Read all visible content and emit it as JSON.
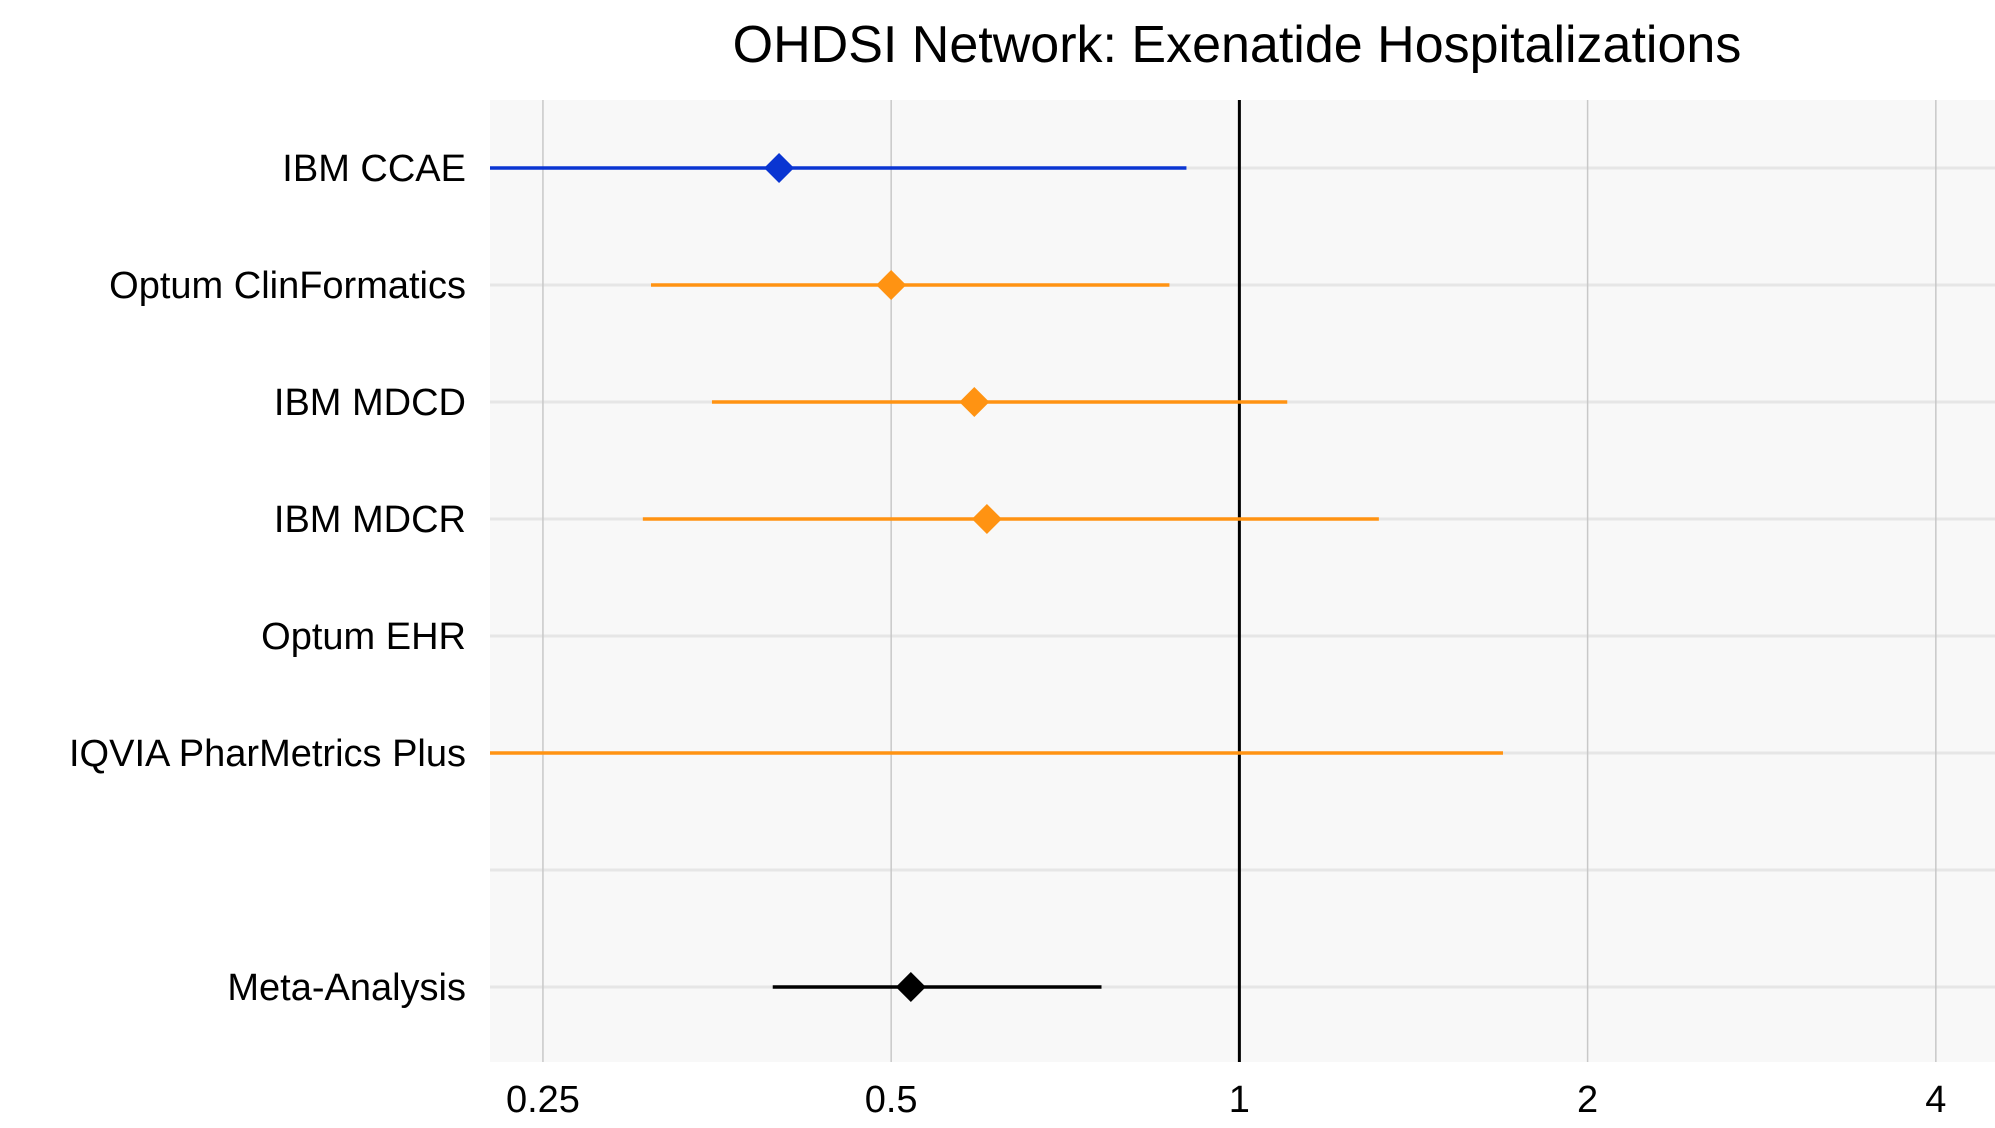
{
  "chart_data": {
    "type": "scatter",
    "title": "OHDSI Network: Exenatide Hospitalizations",
    "xlabel": "",
    "ylabel": "",
    "x_scale": "log2",
    "xlim": [
      0.225,
      4.5
    ],
    "x_ticks": [
      {
        "value": 0.25,
        "label": "0.25"
      },
      {
        "value": 0.5,
        "label": "0.5"
      },
      {
        "value": 1,
        "label": "1"
      },
      {
        "value": 2,
        "label": "2"
      },
      {
        "value": 4,
        "label": "4"
      }
    ],
    "reference_line": 1,
    "grid": true,
    "colors": {
      "highlight": "#0a35d2",
      "default": "#ff9312",
      "meta": "#000000",
      "panel": "#f8f8f8",
      "grid": "#e6e6e6",
      "vgrid": "#c8c8c8"
    },
    "rows": [
      {
        "label": "IBM CCAE",
        "estimate": 0.4,
        "lower": 0.225,
        "upper": 0.9,
        "group": "highlight"
      },
      {
        "label": "Optum ClinFormatics",
        "estimate": 0.5,
        "lower": 0.31,
        "upper": 0.87,
        "group": "default"
      },
      {
        "label": "IBM MDCD",
        "estimate": 0.59,
        "lower": 0.35,
        "upper": 1.1,
        "group": "default"
      },
      {
        "label": "IBM MDCR",
        "estimate": 0.605,
        "lower": 0.305,
        "upper": 1.32,
        "group": "default"
      },
      {
        "label": "Optum EHR",
        "estimate": null,
        "lower": null,
        "upper": null,
        "group": "default"
      },
      {
        "label": "IQVIA PharMetrics Plus",
        "estimate": null,
        "lower": 0.225,
        "upper": 1.69,
        "group": "default"
      },
      {
        "label": "",
        "estimate": null,
        "lower": null,
        "upper": null,
        "group": "spacer"
      },
      {
        "label": "Meta-Analysis",
        "estimate": 0.52,
        "lower": 0.395,
        "upper": 0.76,
        "group": "meta"
      }
    ]
  }
}
